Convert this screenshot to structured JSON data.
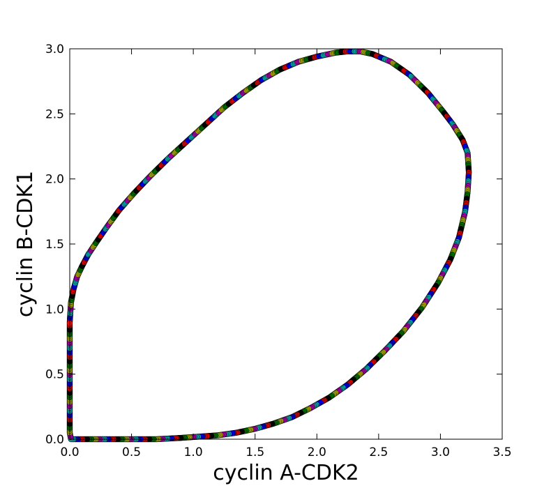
{
  "chart_data": {
    "type": "scatter",
    "title": "",
    "xlabel": "cyclin A-CDK2",
    "ylabel": "cyclin B-CDK1",
    "xlim": [
      0.0,
      3.5
    ],
    "ylim": [
      0.0,
      3.0
    ],
    "xticks": [
      "0.0",
      "0.5",
      "1.0",
      "1.5",
      "2.0",
      "2.5",
      "3.0",
      "3.5"
    ],
    "yticks": [
      "0.0",
      "0.5",
      "1.0",
      "1.5",
      "2.0",
      "2.5",
      "3.0"
    ],
    "grid": false,
    "legend": "none",
    "marker_colors": [
      "#ff0000",
      "#0000ff",
      "#00bfbf",
      "#bf00bf",
      "#bfbf00",
      "#008000",
      "#000000"
    ],
    "series": [
      {
        "x": [
          0.0,
          0.01,
          0.03,
          0.06,
          0.1,
          0.15,
          0.22,
          0.3,
          0.4,
          0.52,
          0.65,
          0.8,
          0.95,
          1.1,
          1.25,
          1.4,
          1.55,
          1.7,
          1.85,
          2.0,
          2.15,
          2.25,
          2.35,
          2.45,
          2.6,
          2.75,
          2.9,
          3.02,
          3.1,
          3.18,
          3.22,
          3.23,
          3.22,
          3.2,
          3.15,
          3.08,
          2.98,
          2.85,
          2.7,
          2.55,
          2.4,
          2.25,
          2.1,
          1.95,
          1.8,
          1.65,
          1.5,
          1.35,
          1.2,
          1.05,
          0.9,
          0.7,
          0.5,
          0.3,
          0.15,
          0.05,
          0.01,
          0.0,
          0.0,
          0.0,
          0.0
        ],
        "y": [
          0.9,
          1.05,
          1.15,
          1.25,
          1.33,
          1.42,
          1.52,
          1.63,
          1.76,
          1.89,
          2.02,
          2.16,
          2.29,
          2.42,
          2.55,
          2.66,
          2.76,
          2.84,
          2.9,
          2.94,
          2.97,
          2.98,
          2.98,
          2.96,
          2.9,
          2.8,
          2.66,
          2.52,
          2.42,
          2.3,
          2.2,
          2.05,
          1.9,
          1.75,
          1.55,
          1.38,
          1.2,
          1.01,
          0.83,
          0.68,
          0.54,
          0.42,
          0.32,
          0.24,
          0.17,
          0.12,
          0.08,
          0.05,
          0.03,
          0.02,
          0.01,
          0.0,
          0.0,
          0.0,
          0.0,
          0.0,
          0.0,
          0.05,
          0.2,
          0.45,
          0.7
        ]
      }
    ]
  }
}
